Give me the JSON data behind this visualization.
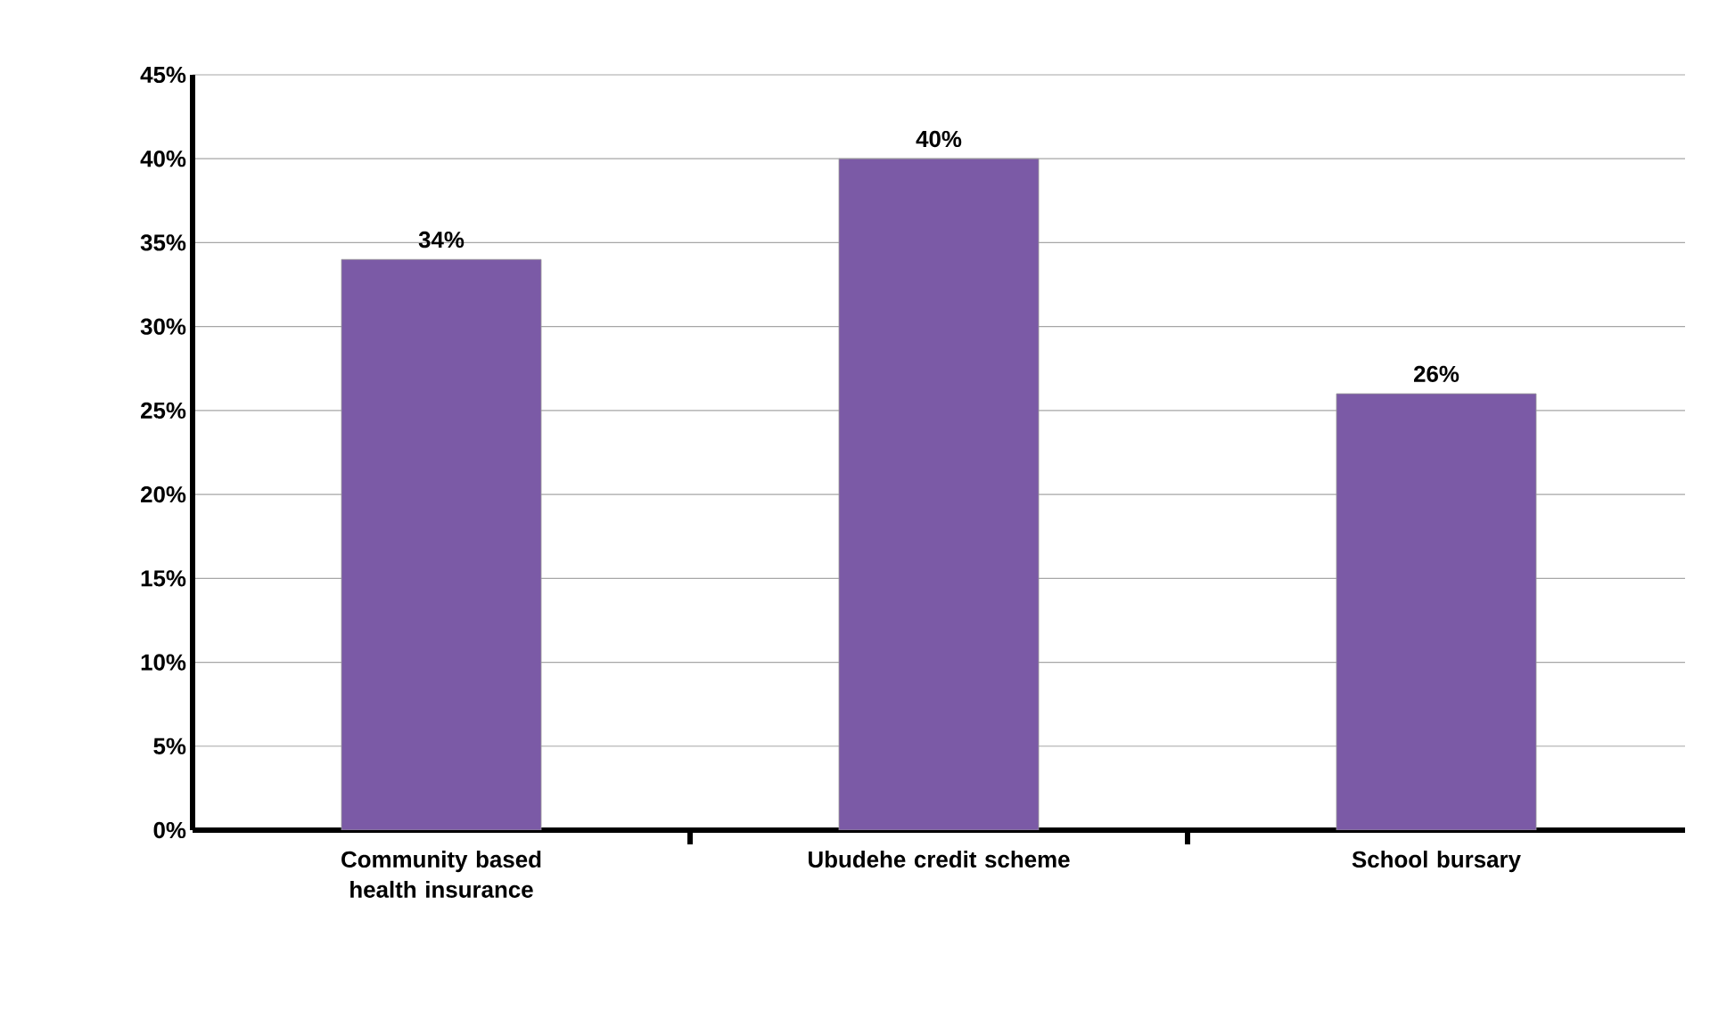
{
  "chart_data": {
    "type": "bar",
    "categories": [
      "Community based health insurance",
      "Ubudehe credit scheme",
      "School bursary"
    ],
    "values": [
      34,
      40,
      26
    ],
    "value_labels": [
      "34%",
      "40%",
      "26%"
    ],
    "color": "#7b5aa6",
    "ylim": [
      0,
      45
    ],
    "yticks": [
      {
        "value": 0,
        "label": "0%"
      },
      {
        "value": 5,
        "label": "5%"
      },
      {
        "value": 10,
        "label": "10%"
      },
      {
        "value": 15,
        "label": "15%"
      },
      {
        "value": 20,
        "label": "20%"
      },
      {
        "value": 25,
        "label": "25%"
      },
      {
        "value": 30,
        "label": "30%"
      },
      {
        "value": 35,
        "label": "35%"
      },
      {
        "value": 40,
        "label": "40%"
      },
      {
        "value": 45,
        "label": "45%"
      }
    ],
    "grid": "y"
  }
}
